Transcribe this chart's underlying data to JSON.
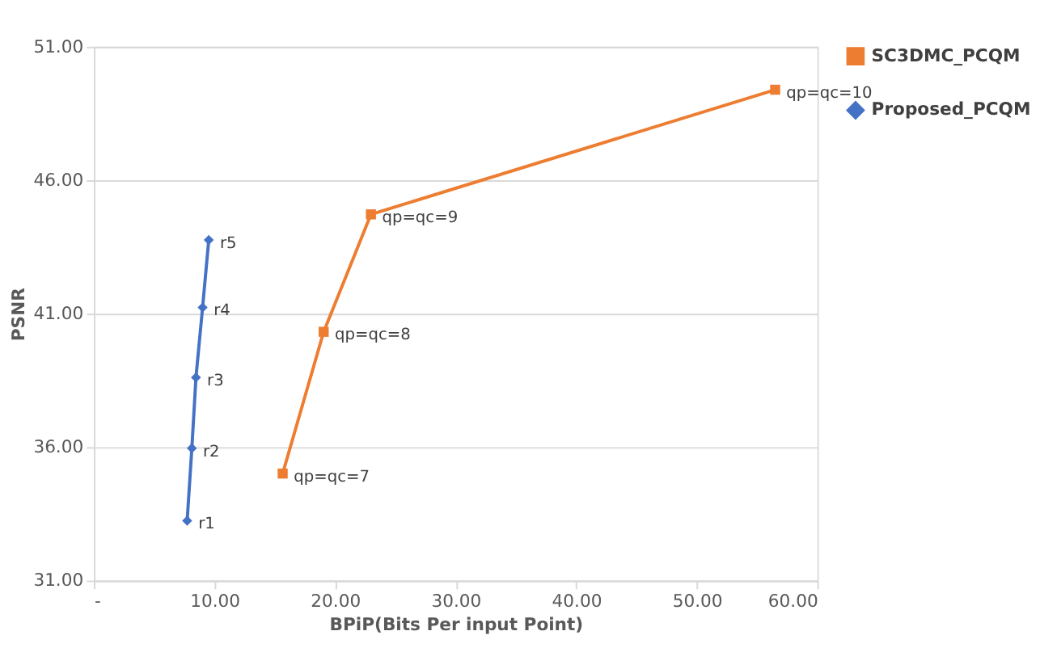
{
  "chart_data": {
    "type": "line",
    "xlabel": "BPiP(Bits Per input Point)",
    "ylabel": "PSNR",
    "xlim": [
      0,
      60
    ],
    "xticks": [
      {
        "value": 0,
        "label": "-"
      },
      {
        "value": 10,
        "label": "10.00"
      },
      {
        "value": 20,
        "label": "20.00"
      },
      {
        "value": 30,
        "label": "30.00"
      },
      {
        "value": 40,
        "label": "40.00"
      },
      {
        "value": 50,
        "label": "50.00"
      },
      {
        "value": 60,
        "label": "60.00"
      }
    ],
    "ylim": [
      31,
      51
    ],
    "yticks": [
      {
        "value": 31,
        "label": "31.00"
      },
      {
        "value": 36,
        "label": "36.00"
      },
      {
        "value": 41,
        "label": "41.00"
      },
      {
        "value": 46,
        "label": "46.00"
      },
      {
        "value": 51,
        "label": "51.00"
      }
    ],
    "grid": "y",
    "legend": "right",
    "line_style": "solid",
    "series": [
      {
        "name": "SC3DMC_PCQM",
        "color": "#ed7d31",
        "marker": "square",
        "x": [
          15.66,
          19.06,
          22.98,
          56.5
        ],
        "values": [
          35.01,
          40.32,
          44.72,
          49.39
        ]
      },
      {
        "name": "Proposed_PCQM",
        "color": "#4472c4",
        "marker": "diamond",
        "x": [
          7.74,
          8.13,
          8.47,
          9.02,
          9.53
        ],
        "values": [
          33.24,
          35.96,
          38.61,
          41.23,
          43.76
        ]
      }
    ],
    "annotations": [
      {
        "text": "qp=qc=7",
        "x": 15.66,
        "y": 35.01
      },
      {
        "text": "qp=qc=8",
        "x": 19.06,
        "y": 40.32
      },
      {
        "text": "qp=qc=9",
        "x": 22.98,
        "y": 44.72
      },
      {
        "text": "qp=qc=10",
        "x": 56.5,
        "y": 49.39
      },
      {
        "text": "r1",
        "x": 7.74,
        "y": 33.24
      },
      {
        "text": "r2",
        "x": 8.13,
        "y": 35.96
      },
      {
        "text": "r3",
        "x": 8.47,
        "y": 38.61
      },
      {
        "text": "r4",
        "x": 9.02,
        "y": 41.23
      },
      {
        "text": "r5",
        "x": 9.53,
        "y": 43.76
      }
    ]
  }
}
